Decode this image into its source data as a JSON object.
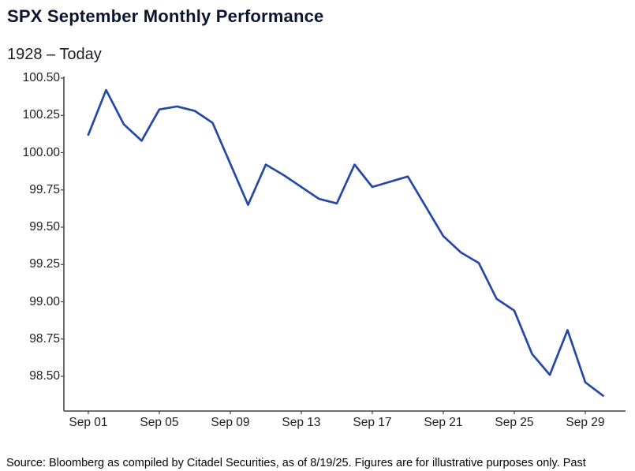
{
  "header": {
    "title": "SPX September Monthly Performance",
    "subtitle": "1928 – Today"
  },
  "chart_data": {
    "type": "line",
    "title": "SPX September Monthly Performance",
    "subtitle": "1928 – Today",
    "points": [
      [
        1,
        100.12
      ],
      [
        2,
        100.42
      ],
      [
        3,
        100.19
      ],
      [
        4,
        100.08
      ],
      [
        5,
        100.29
      ],
      [
        6,
        100.31
      ],
      [
        7,
        100.28
      ],
      [
        8,
        100.2
      ],
      [
        10,
        99.65
      ],
      [
        11,
        99.92
      ],
      [
        12,
        99.85
      ],
      [
        14,
        99.69
      ],
      [
        15,
        99.66
      ],
      [
        16,
        99.92
      ],
      [
        17,
        99.77
      ],
      [
        19,
        99.84
      ],
      [
        21,
        99.44
      ],
      [
        22,
        99.33
      ],
      [
        23,
        99.26
      ],
      [
        24,
        99.02
      ],
      [
        25,
        98.94
      ],
      [
        26,
        98.65
      ],
      [
        27,
        98.51
      ],
      [
        28,
        98.81
      ],
      [
        29,
        98.46
      ],
      [
        30,
        98.37
      ]
    ],
    "xtick_labels": [
      "Sep 01",
      "Sep 05",
      "Sep 09",
      "Sep 13",
      "Sep 17",
      "Sep 21",
      "Sep 25",
      "Sep 29"
    ],
    "xtick_days": [
      1,
      5,
      9,
      13,
      17,
      21,
      25,
      29
    ],
    "ytick_values": [
      100.5,
      100.25,
      100.0,
      99.75,
      99.5,
      99.25,
      99.0,
      98.75,
      98.5
    ],
    "ylim": [
      98.27,
      100.5
    ],
    "xlim_days": [
      1,
      30
    ],
    "grid": false,
    "legend": "none",
    "line_color": "#2547a6"
  },
  "colors": {
    "title_text": "#0b1530",
    "axis_text": "#1f1f1f",
    "spine": "#3f3f3f",
    "background": "#ffffff"
  },
  "footer": {
    "source_text": "Source: Bloomberg as compiled by Citadel Securities, as of 8/19/25. Figures are for illustrative purposes only. Past"
  }
}
